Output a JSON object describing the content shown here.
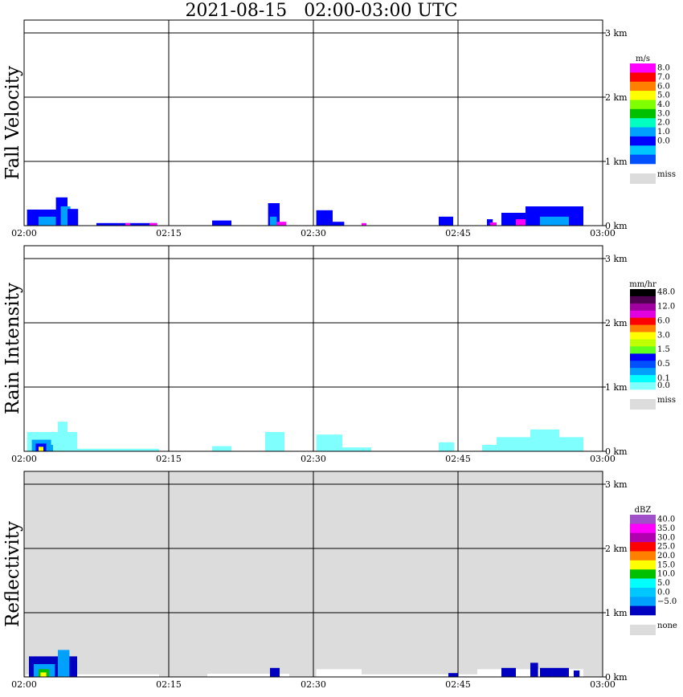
{
  "title": "2021-08-15   02:00-03:00 UTC",
  "x_ticks": [
    "02:00",
    "02:15",
    "02:30",
    "02:45",
    "03:00"
  ],
  "height_ticks": [
    "3 km",
    "2 km",
    "1 km",
    "0 km"
  ],
  "chart_data": [
    {
      "type": "heatmap",
      "ylabel": "Fall Velocity",
      "unit": "m/s",
      "xlim": [
        "02:00",
        "03:00"
      ],
      "ylim_km": [
        0,
        3
      ],
      "grid": true,
      "legend": "right",
      "background": "#ffffff",
      "colorbar": [
        {
          "label": "8.0",
          "color": "#ff00ff"
        },
        {
          "label": "7.0",
          "color": "#ff0000"
        },
        {
          "label": "6.0",
          "color": "#ff8000"
        },
        {
          "label": "5.0",
          "color": "#ffff00"
        },
        {
          "label": "4.0",
          "color": "#80ff00"
        },
        {
          "label": "3.0",
          "color": "#00c000"
        },
        {
          "label": "2.0",
          "color": "#00ffc0"
        },
        {
          "label": "1.0",
          "color": "#00a0ff"
        },
        {
          "label": "0.0",
          "color": "#0000ff"
        }
      ],
      "colorbar_extra": [
        {
          "label": "",
          "color": "#00c8ff"
        },
        {
          "label": "",
          "color": "#0050ff"
        }
      ],
      "miss": {
        "label": "miss",
        "color": "#dcdcdc"
      },
      "echoes": [
        {
          "t": 0.3,
          "t2": 3.8,
          "top_km": 0.25,
          "color": "#0000ff"
        },
        {
          "t": 1.5,
          "t2": 3.3,
          "top_km": 0.14,
          "color": "#00a0ff"
        },
        {
          "t": 3.3,
          "t2": 4.5,
          "top_km": 0.44,
          "color": "#0000ff"
        },
        {
          "t": 3.8,
          "t2": 4.8,
          "top_km": 0.3,
          "color": "#00a0ff"
        },
        {
          "t": 4.5,
          "t2": 5.6,
          "top_km": 0.26,
          "color": "#0000ff"
        },
        {
          "t": 7.5,
          "t2": 13.8,
          "top_km": 0.04,
          "color": "#0000ff"
        },
        {
          "t": 10.5,
          "t2": 11.0,
          "top_km": 0.04,
          "color": "#ff00ff"
        },
        {
          "t": 13.0,
          "t2": 13.8,
          "top_km": 0.04,
          "color": "#ff00ff"
        },
        {
          "t": 19.5,
          "t2": 21.5,
          "top_km": 0.08,
          "color": "#0000ff"
        },
        {
          "t": 25.3,
          "t2": 26.5,
          "top_km": 0.35,
          "color": "#0000ff"
        },
        {
          "t": 25.5,
          "t2": 26.2,
          "top_km": 0.14,
          "color": "#00a0ff"
        },
        {
          "t": 26.2,
          "t2": 27.2,
          "top_km": 0.06,
          "color": "#ff00ff"
        },
        {
          "t": 30.3,
          "t2": 32.0,
          "top_km": 0.24,
          "color": "#0000ff"
        },
        {
          "t": 32.0,
          "t2": 33.2,
          "top_km": 0.06,
          "color": "#0000ff"
        },
        {
          "t": 35.0,
          "t2": 35.5,
          "top_km": 0.04,
          "color": "#ff00ff"
        },
        {
          "t": 43.0,
          "t2": 44.5,
          "top_km": 0.14,
          "color": "#0000ff"
        },
        {
          "t": 48.0,
          "t2": 48.6,
          "top_km": 0.1,
          "color": "#0000ff"
        },
        {
          "t": 48.3,
          "t2": 49.0,
          "top_km": 0.05,
          "color": "#ff00ff"
        },
        {
          "t": 49.5,
          "t2": 55.0,
          "top_km": 0.2,
          "color": "#0000ff"
        },
        {
          "t": 51.0,
          "t2": 52.0,
          "top_km": 0.1,
          "color": "#ff00ff"
        },
        {
          "t": 52.0,
          "t2": 58.0,
          "top_km": 0.3,
          "color": "#0000ff"
        },
        {
          "t": 53.5,
          "t2": 56.5,
          "top_km": 0.14,
          "color": "#00a0ff"
        }
      ]
    },
    {
      "type": "heatmap",
      "ylabel": "Rain Intensity",
      "unit": "mm/hr",
      "xlim": [
        "02:00",
        "03:00"
      ],
      "ylim_km": [
        0,
        3
      ],
      "grid": true,
      "legend": "right",
      "background": "#ffffff",
      "colorbar": [
        {
          "label": "48.0",
          "color": "#000000"
        },
        {
          "label": "",
          "color": "#500050"
        },
        {
          "label": "12.0",
          "color": "#a000a0"
        },
        {
          "label": "",
          "color": "#e000e0"
        },
        {
          "label": "6.0",
          "color": "#ff0000"
        },
        {
          "label": "",
          "color": "#ff8000"
        },
        {
          "label": "3.0",
          "color": "#ffff00"
        },
        {
          "label": "",
          "color": "#c0ff00"
        },
        {
          "label": "1.5",
          "color": "#60ff20"
        },
        {
          "label": "",
          "color": "#0000ff"
        },
        {
          "label": "0.5",
          "color": "#0050ff"
        },
        {
          "label": "",
          "color": "#00a0ff"
        },
        {
          "label": "0.1",
          "color": "#00ffff"
        },
        {
          "label": "0.0",
          "color": "#80ffff"
        }
      ],
      "miss": {
        "label": "miss",
        "color": "#dcdcdc"
      },
      "echoes": [
        {
          "t": 0.3,
          "t2": 5.5,
          "top_km": 0.3,
          "color": "#80ffff"
        },
        {
          "t": 3.5,
          "t2": 4.5,
          "top_km": 0.46,
          "color": "#80ffff"
        },
        {
          "t": 0.8,
          "t2": 2.8,
          "top_km": 0.18,
          "color": "#00a0ff"
        },
        {
          "t": 1.2,
          "t2": 2.3,
          "top_km": 0.12,
          "color": "#0000ff"
        },
        {
          "t": 1.5,
          "t2": 2.0,
          "top_km": 0.07,
          "color": "#ffff00"
        },
        {
          "t": 2.3,
          "t2": 3.0,
          "top_km": 0.1,
          "color": "#00a0ff"
        },
        {
          "t": 5.5,
          "t2": 14.0,
          "top_km": 0.04,
          "color": "#80ffff"
        },
        {
          "t": 19.5,
          "t2": 21.5,
          "top_km": 0.08,
          "color": "#80ffff"
        },
        {
          "t": 25.0,
          "t2": 27.0,
          "top_km": 0.3,
          "color": "#80ffff"
        },
        {
          "t": 30.3,
          "t2": 33.0,
          "top_km": 0.26,
          "color": "#80ffff"
        },
        {
          "t": 33.0,
          "t2": 36.0,
          "top_km": 0.06,
          "color": "#80ffff"
        },
        {
          "t": 43.0,
          "t2": 44.6,
          "top_km": 0.14,
          "color": "#80ffff"
        },
        {
          "t": 47.5,
          "t2": 49.0,
          "top_km": 0.1,
          "color": "#80ffff"
        },
        {
          "t": 49.0,
          "t2": 58.0,
          "top_km": 0.22,
          "color": "#80ffff"
        },
        {
          "t": 52.5,
          "t2": 55.5,
          "top_km": 0.34,
          "color": "#80ffff"
        }
      ]
    },
    {
      "type": "heatmap",
      "ylabel": "Reflectivity",
      "unit": "dBZ",
      "xlim": [
        "02:00",
        "03:00"
      ],
      "ylim_km": [
        0,
        3
      ],
      "grid": true,
      "legend": "right",
      "background": "#dcdcdc",
      "colorbar": [
        {
          "label": "40.0",
          "color": "#a050c8"
        },
        {
          "label": "35.0",
          "color": "#ff00ff"
        },
        {
          "label": "30.0",
          "color": "#b000b0"
        },
        {
          "label": "25.0",
          "color": "#ff0000"
        },
        {
          "label": "20.0",
          "color": "#ff8000"
        },
        {
          "label": "15.0",
          "color": "#ffff00"
        },
        {
          "label": "10.0",
          "color": "#00c000"
        },
        {
          "label": "5.0",
          "color": "#00ffff"
        },
        {
          "label": "0.0",
          "color": "#00c8ff"
        },
        {
          "label": "−5.0",
          "color": "#00a0ff"
        }
      ],
      "colorbar_extra": [
        {
          "label": "",
          "color": "#0000c0"
        }
      ],
      "miss": {
        "label": "none",
        "color": "#dcdcdc"
      },
      "echoes": [
        {
          "t": 0.2,
          "t2": 14.0,
          "top_km": 0.04,
          "color": "#ffffff"
        },
        {
          "t": 0.5,
          "t2": 5.5,
          "top_km": 0.32,
          "color": "#0000c0"
        },
        {
          "t": 1.0,
          "t2": 3.2,
          "top_km": 0.2,
          "color": "#00a0ff"
        },
        {
          "t": 1.5,
          "t2": 2.6,
          "top_km": 0.12,
          "color": "#00c000"
        },
        {
          "t": 1.7,
          "t2": 2.3,
          "top_km": 0.07,
          "color": "#ffff00"
        },
        {
          "t": 3.5,
          "t2": 4.7,
          "top_km": 0.42,
          "color": "#00a0ff"
        },
        {
          "t": 19.0,
          "t2": 27.5,
          "top_km": 0.05,
          "color": "#ffffff"
        },
        {
          "t": 25.5,
          "t2": 26.5,
          "top_km": 0.14,
          "color": "#0000c0"
        },
        {
          "t": 30.3,
          "t2": 35.0,
          "top_km": 0.12,
          "color": "#ffffff"
        },
        {
          "t": 35.0,
          "t2": 47.0,
          "top_km": 0.04,
          "color": "#ffffff"
        },
        {
          "t": 44.0,
          "t2": 45.0,
          "top_km": 0.06,
          "color": "#0000c0"
        },
        {
          "t": 47.0,
          "t2": 58.0,
          "top_km": 0.12,
          "color": "#ffffff"
        },
        {
          "t": 49.5,
          "t2": 51.0,
          "top_km": 0.14,
          "color": "#0000c0"
        },
        {
          "t": 52.5,
          "t2": 53.3,
          "top_km": 0.22,
          "color": "#0000c0"
        },
        {
          "t": 53.5,
          "t2": 56.5,
          "top_km": 0.14,
          "color": "#0000c0"
        },
        {
          "t": 57.0,
          "t2": 57.6,
          "top_km": 0.1,
          "color": "#0000c0"
        }
      ]
    }
  ]
}
